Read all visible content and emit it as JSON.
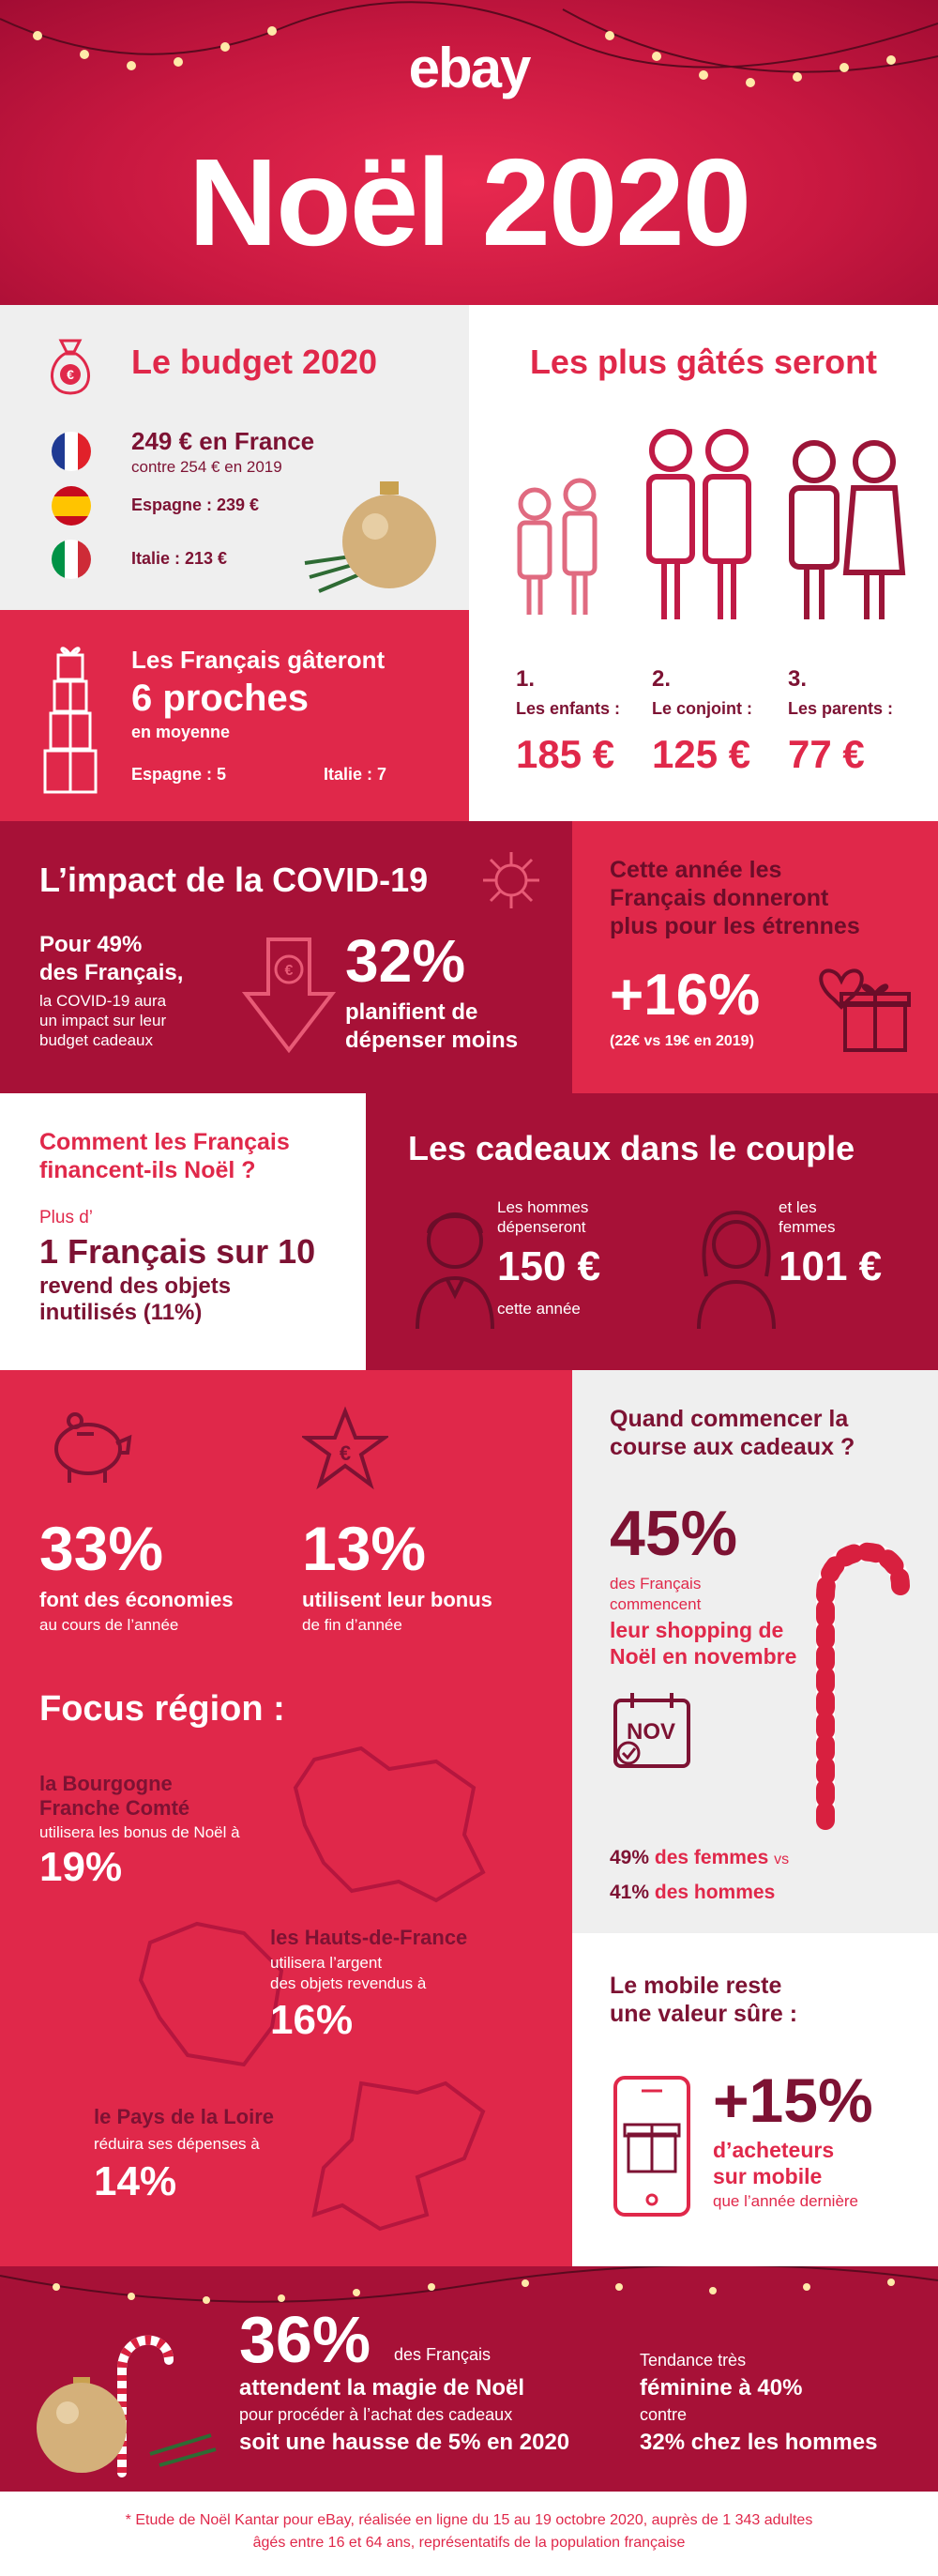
{
  "header": {
    "logo": "ebay",
    "title": "Noël 2020"
  },
  "budget": {
    "title": "Le budget 2020",
    "france": "249 € en France",
    "france_prev": "contre 254 € en 2019",
    "spain": "Espagne : 239 €",
    "italy": "Italie : 213 €"
  },
  "gifts": {
    "line1": "Les Français gâteront",
    "big": "6 proches",
    "sub": "en moyenne",
    "spain": "Espagne : 5",
    "italy": "Italie : 7"
  },
  "spoiled": {
    "title": "Les plus gâtés seront",
    "items": [
      {
        "rank": "1.",
        "label": "Les enfants :",
        "value": "185 €"
      },
      {
        "rank": "2.",
        "label": "Le conjoint :",
        "value": "125 €"
      },
      {
        "rank": "3.",
        "label": "Les parents :",
        "value": "77 €"
      }
    ]
  },
  "covid": {
    "title": "L’impact de la COVID-19",
    "lead1": "Pour 49%",
    "lead2": "des Français,",
    "desc1": "la COVID-19 aura",
    "desc2": "un impact sur leur",
    "desc3": "budget cadeaux",
    "pct": "32%",
    "pct_l1": "planifient de",
    "pct_l2": "dépenser moins"
  },
  "etrennes": {
    "l1": "Cette année les",
    "l2": "Français donneront",
    "l3": "plus pour les étrennes",
    "pct": "+16%",
    "note": "(22€ vs 19€ en 2019)"
  },
  "finance": {
    "l1": "Comment les Français",
    "l2": "financent-ils Noël ?",
    "pre": "Plus d’",
    "big": "1 Français sur 10",
    "d1": "revend des objets",
    "d2": "inutilisés (11%)"
  },
  "couple": {
    "title": "Les cadeaux dans le couple",
    "men_l1": "Les hommes",
    "men_l2": "dépenseront",
    "men_val": "150 €",
    "men_sub": "cette année",
    "women_l1": "et les",
    "women_l2": "femmes",
    "women_val": "101 €"
  },
  "savings": {
    "a_pct": "33%",
    "a_l1": "font des économies",
    "a_l2": "au cours de l’année",
    "b_pct": "13%",
    "b_l1": "utilisent leur bonus",
    "b_l2": "de fin d’année",
    "focus": "Focus région :",
    "r1_name1": "la Bourgogne",
    "r1_name2": "Franche Comté",
    "r1_desc": "utilisera les bonus de Noël à",
    "r1_pct": "19%",
    "r2_name": "les Hauts-de-France",
    "r2_d1": "utilisera l’argent",
    "r2_d2": "des objets revendus à",
    "r2_pct": "16%",
    "r3_name": "le Pays de la Loire",
    "r3_desc": "réduira ses dépenses à",
    "r3_pct": "14%"
  },
  "start": {
    "l1": "Quand commencer la",
    "l2": "course aux cadeaux ?",
    "pct": "45%",
    "d1": "des Français",
    "d2": "commencent",
    "b1": "leur shopping de",
    "b2": "Noël en novembre",
    "cal": "NOV",
    "women_pct": "49%",
    "women": "des femmes",
    "vs": "vs",
    "men_pct": "41%",
    "men": "des hommes"
  },
  "mobile": {
    "l1": "Le mobile reste",
    "l2": "une valeur sûre :",
    "pct": "+15%",
    "b1": "d’acheteurs",
    "b2": "sur mobile",
    "sub": "que l’année dernière"
  },
  "magic": {
    "pct": "36%",
    "pct_sub": "des Français",
    "l1": "attendent la magie de Noël",
    "l2": "pour procéder à l’achat des cadeaux",
    "l3": "soit une hausse de 5% en 2020",
    "r1": "Tendance très",
    "r2": "féminine à 40%",
    "r3": "contre",
    "r4": "32% chez les hommes"
  },
  "footnote": {
    "l1": "* Etude de Noël Kantar pour eBay, réalisée en ligne du 15 au 19 octobre 2020, auprès de 1 343 adultes",
    "l2": "âgés entre 16 et 64 ans, représentatifs de la population française"
  },
  "colors": {
    "red": "#e0284a",
    "wine": "#a71137",
    "grey": "#efefef"
  }
}
